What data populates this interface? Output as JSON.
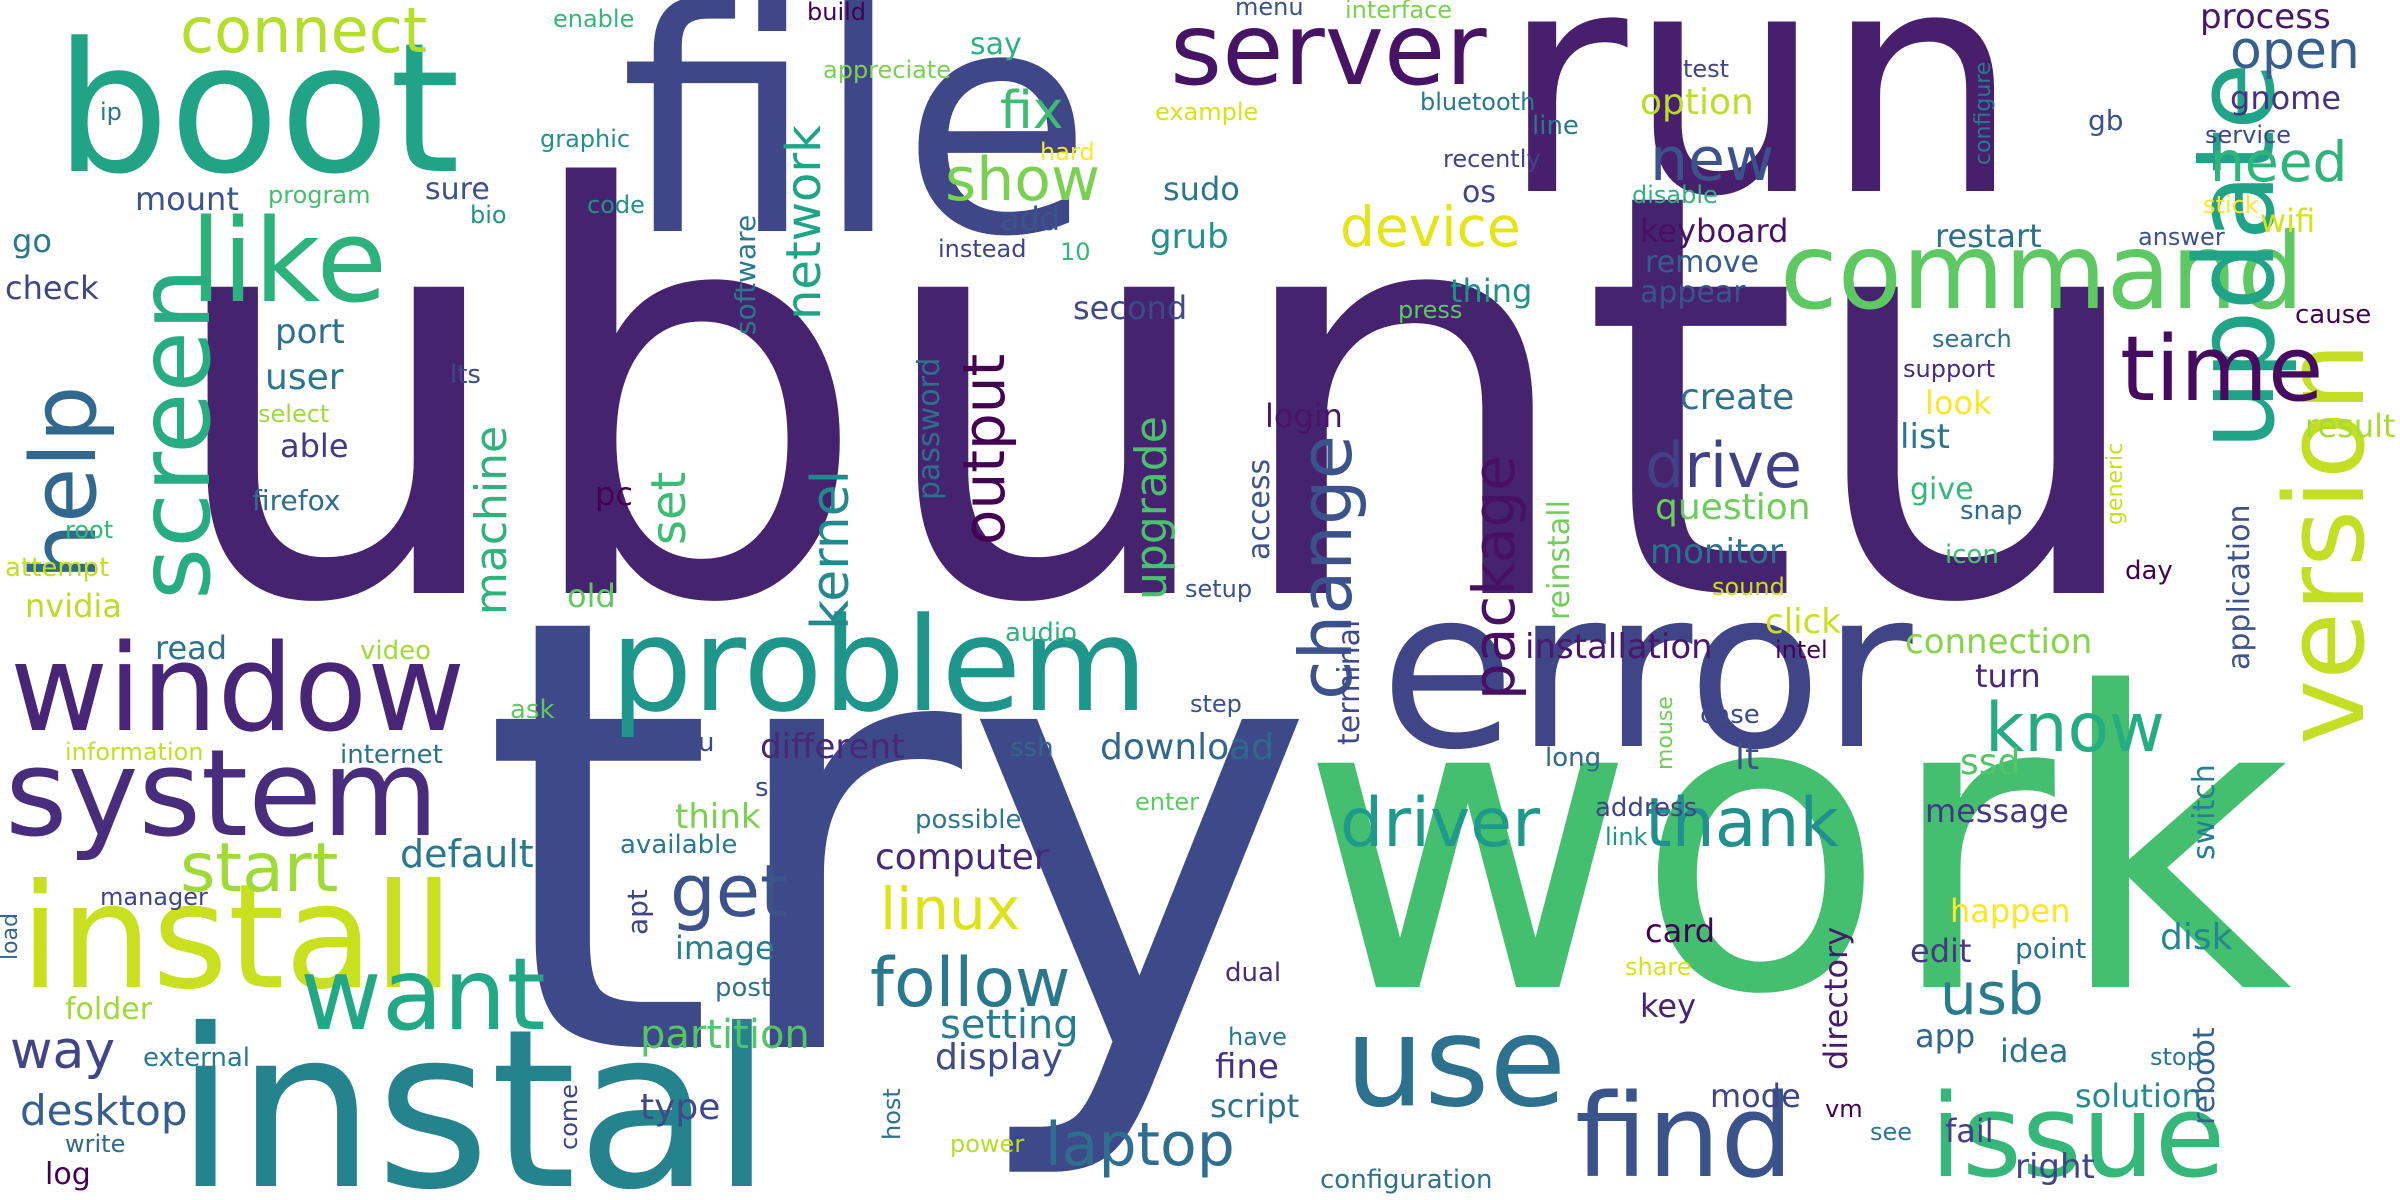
{
  "words": [
    {
      "text": "ubuntu",
      "color": "#46236f"
    },
    {
      "text": "try",
      "color": "#3e4989"
    },
    {
      "text": "work",
      "color": "#44bf70"
    },
    {
      "text": "run",
      "color": "#471f6c"
    },
    {
      "text": "file",
      "color": "#3f4788"
    },
    {
      "text": "instal",
      "color": "#25838e"
    },
    {
      "text": "error",
      "color": "#404588"
    },
    {
      "text": "boot",
      "color": "#21a385"
    },
    {
      "text": "install",
      "color": "#c8e020"
    },
    {
      "text": "problem",
      "color": "#1f968b"
    },
    {
      "text": "window",
      "color": "#482576"
    },
    {
      "text": "system",
      "color": "#472d7b"
    },
    {
      "text": "use",
      "color": "#2c728e"
    },
    {
      "text": "find",
      "color": "#3a538b"
    },
    {
      "text": "issue",
      "color": "#35b779"
    },
    {
      "text": "command",
      "color": "#5ec962"
    },
    {
      "text": "update",
      "color": "#20a386"
    },
    {
      "text": "version",
      "color": "#c2df23"
    },
    {
      "text": "like",
      "color": "#2db27d"
    },
    {
      "text": "server",
      "color": "#471365"
    },
    {
      "text": "screen",
      "color": "#27ad81"
    },
    {
      "text": "want",
      "color": "#22a884"
    },
    {
      "text": "time",
      "color": "#460b5e"
    },
    {
      "text": "help",
      "color": "#31688e"
    },
    {
      "text": "connect",
      "color": "#b5de2b"
    },
    {
      "text": "get",
      "color": "#3b528b"
    },
    {
      "text": "follow",
      "color": "#2a788e"
    },
    {
      "text": "laptop",
      "color": "#2e6e8e"
    },
    {
      "text": "driver",
      "color": "#1f9a8a"
    },
    {
      "text": "thank",
      "color": "#21908d"
    },
    {
      "text": "know",
      "color": "#25ac82"
    },
    {
      "text": "change",
      "color": "#3b528b"
    },
    {
      "text": "start",
      "color": "#a0da39"
    },
    {
      "text": "drive",
      "color": "#424086"
    },
    {
      "text": "package",
      "color": "#471063"
    },
    {
      "text": "show",
      "color": "#7ad151"
    },
    {
      "text": "device",
      "color": "#e5e419"
    },
    {
      "text": "new",
      "color": "#3b528b"
    },
    {
      "text": "need",
      "color": "#2fb47c"
    },
    {
      "text": "open",
      "color": "#355f8d"
    },
    {
      "text": "fix",
      "color": "#3fbc73"
    },
    {
      "text": "output",
      "color": "#440154"
    },
    {
      "text": "network",
      "color": "#20a486"
    },
    {
      "text": "kernel",
      "color": "#23898e"
    },
    {
      "text": "upgrade",
      "color": "#4ac16d"
    },
    {
      "text": "machine",
      "color": "#2eb37c"
    },
    {
      "text": "set",
      "color": "#3dbc74"
    },
    {
      "text": "linux",
      "color": "#dde318"
    },
    {
      "text": "usb",
      "color": "#287c8e"
    },
    {
      "text": "way",
      "color": "#414487"
    },
    {
      "text": "desktop",
      "color": "#355f8d"
    },
    {
      "text": "default",
      "color": "#29798e"
    },
    {
      "text": "partition",
      "color": "#52c569"
    },
    {
      "text": "setting",
      "color": "#287d8e"
    },
    {
      "text": "display",
      "color": "#3e4a89"
    },
    {
      "text": "computer",
      "color": "#482979"
    },
    {
      "text": "download",
      "color": "#31688e"
    },
    {
      "text": "different",
      "color": "#482777"
    },
    {
      "text": "installation",
      "color": "#481769"
    },
    {
      "text": "connection",
      "color": "#86d549"
    },
    {
      "text": "create",
      "color": "#2c718e"
    },
    {
      "text": "list",
      "color": "#2a768e"
    },
    {
      "text": "question",
      "color": "#6ccd5a"
    },
    {
      "text": "monitor",
      "color": "#2c718e"
    },
    {
      "text": "keyboard",
      "color": "#471063"
    },
    {
      "text": "restart",
      "color": "#2d708e"
    },
    {
      "text": "remove",
      "color": "#365d8d"
    },
    {
      "text": "appear",
      "color": "#3a548c"
    },
    {
      "text": "option",
      "color": "#b8de29"
    },
    {
      "text": "process",
      "color": "#481769"
    },
    {
      "text": "gnome",
      "color": "#46337f"
    },
    {
      "text": "wifi",
      "color": "#d8e219"
    },
    {
      "text": "message",
      "color": "#453882"
    },
    {
      "text": "ssd",
      "color": "#52c569"
    },
    {
      "text": "lt",
      "color": "#3b528b"
    },
    {
      "text": "turn",
      "color": "#472a7a"
    },
    {
      "text": "solution",
      "color": "#238a8d"
    },
    {
      "text": "disk",
      "color": "#24868e"
    },
    {
      "text": "happen",
      "color": "#fde725"
    },
    {
      "text": "edit",
      "color": "#453781"
    },
    {
      "text": "point",
      "color": "#2c728e"
    },
    {
      "text": "app",
      "color": "#31678e"
    },
    {
      "text": "idea",
      "color": "#2b748e"
    },
    {
      "text": "card",
      "color": "#440154"
    },
    {
      "text": "key",
      "color": "#482173"
    },
    {
      "text": "mode",
      "color": "#404588"
    },
    {
      "text": "fail",
      "color": "#433e85"
    },
    {
      "text": "right",
      "color": "#404588"
    },
    {
      "text": "reboot",
      "color": "#33628d"
    },
    {
      "text": "switch",
      "color": "#277f8e"
    },
    {
      "text": "application",
      "color": "#3b528b"
    },
    {
      "text": "result",
      "color": "#a8db34"
    },
    {
      "text": "cause",
      "color": "#440154"
    },
    {
      "text": "day",
      "color": "#440154"
    },
    {
      "text": "directory",
      "color": "#481a6c"
    },
    {
      "text": "reinstall",
      "color": "#6ece58"
    },
    {
      "text": "terminal",
      "color": "#3e4989"
    },
    {
      "text": "access",
      "color": "#3a548c"
    },
    {
      "text": "login",
      "color": "#481467"
    },
    {
      "text": "password",
      "color": "#2d708e"
    },
    {
      "text": "user",
      "color": "#2a768e"
    },
    {
      "text": "port",
      "color": "#2e6f8e"
    },
    {
      "text": "able",
      "color": "#443983"
    },
    {
      "text": "firefox",
      "color": "#2e6d8e"
    },
    {
      "text": "mount",
      "color": "#3b528b"
    },
    {
      "text": "sure",
      "color": "#3b528b"
    },
    {
      "text": "check",
      "color": "#414487"
    },
    {
      "text": "go",
      "color": "#2a788e"
    },
    {
      "text": "read",
      "color": "#2d718e"
    },
    {
      "text": "nvidia",
      "color": "#bade28"
    },
    {
      "text": "root",
      "color": "#35b779"
    },
    {
      "text": "attempt",
      "color": "#c0df25"
    },
    {
      "text": "select",
      "color": "#a0da39"
    },
    {
      "text": "lts",
      "color": "#3e4989"
    },
    {
      "text": "pc",
      "color": "#440154"
    },
    {
      "text": "old",
      "color": "#60ca60"
    },
    {
      "text": "video",
      "color": "#a0da39"
    },
    {
      "text": "ask",
      "color": "#5ec962"
    },
    {
      "text": "internet",
      "color": "#2c728e"
    },
    {
      "text": "information",
      "color": "#c2df23"
    },
    {
      "text": "gpu",
      "color": "#3e4989"
    },
    {
      "text": "think",
      "color": "#7ad151"
    },
    {
      "text": "image",
      "color": "#277f8e"
    },
    {
      "text": "available",
      "color": "#2a788e"
    },
    {
      "text": "apt",
      "color": "#414487"
    },
    {
      "text": "post",
      "color": "#2c728e"
    },
    {
      "text": "solve",
      "color": "#3e4989"
    },
    {
      "text": "ssh",
      "color": "#31688e"
    },
    {
      "text": "possible",
      "color": "#2a788e"
    },
    {
      "text": "enter",
      "color": "#5ec962"
    },
    {
      "text": "step",
      "color": "#3b528b"
    },
    {
      "text": "setup",
      "color": "#3b528b"
    },
    {
      "text": "audio",
      "color": "#2db27d"
    },
    {
      "text": "dual",
      "color": "#472d7b"
    },
    {
      "text": "have",
      "color": "#2a788e"
    },
    {
      "text": "script",
      "color": "#2c728e"
    },
    {
      "text": "fine",
      "color": "#46337f"
    },
    {
      "text": "type",
      "color": "#3e4989"
    },
    {
      "text": "come",
      "color": "#414487"
    },
    {
      "text": "host",
      "color": "#2c728e"
    },
    {
      "text": "power",
      "color": "#b5de2b"
    },
    {
      "text": "configuration",
      "color": "#2c728e"
    },
    {
      "text": "see",
      "color": "#2a788e"
    },
    {
      "text": "stop",
      "color": "#2a788e"
    },
    {
      "text": "vm",
      "color": "#440154"
    },
    {
      "text": "share",
      "color": "#d8e219"
    },
    {
      "text": "link",
      "color": "#21918c"
    },
    {
      "text": "address",
      "color": "#414487"
    },
    {
      "text": "mouse",
      "color": "#6ece58"
    },
    {
      "text": "case",
      "color": "#3e4989"
    },
    {
      "text": "long",
      "color": "#31688e"
    },
    {
      "text": "intel",
      "color": "#440154"
    },
    {
      "text": "click",
      "color": "#c8e020"
    },
    {
      "text": "sound",
      "color": "#c8e020"
    },
    {
      "text": "icon",
      "color": "#44bf70"
    },
    {
      "text": "snap",
      "color": "#31688e"
    },
    {
      "text": "give",
      "color": "#35b779"
    },
    {
      "text": "look",
      "color": "#fde725"
    },
    {
      "text": "support",
      "color": "#472d7b"
    },
    {
      "text": "search",
      "color": "#2c728e"
    },
    {
      "text": "generic",
      "color": "#c8e020"
    },
    {
      "text": "answer",
      "color": "#3b528b"
    },
    {
      "text": "stick",
      "color": "#fde725"
    },
    {
      "text": "service",
      "color": "#3e4989"
    },
    {
      "text": "gb",
      "color": "#3b528b"
    },
    {
      "text": "configure",
      "color": "#2a788e"
    },
    {
      "text": "test",
      "color": "#414487"
    },
    {
      "text": "disable",
      "color": "#2db27d"
    },
    {
      "text": "recently",
      "color": "#414487"
    },
    {
      "text": "os",
      "color": "#414487"
    },
    {
      "text": "bluetooth",
      "color": "#2a788e"
    },
    {
      "text": "line",
      "color": "#2a788e"
    },
    {
      "text": "press",
      "color": "#5ec962"
    },
    {
      "text": "thing",
      "color": "#21918c"
    },
    {
      "text": "second",
      "color": "#3e4989"
    },
    {
      "text": "grub",
      "color": "#21918c"
    },
    {
      "text": "sudo",
      "color": "#2a788e"
    },
    {
      "text": "10",
      "color": "#35b779"
    },
    {
      "text": "instead",
      "color": "#414487"
    },
    {
      "text": "add",
      "color": "#3b528b"
    },
    {
      "text": "hard",
      "color": "#fde725"
    },
    {
      "text": "example",
      "color": "#d8e219"
    },
    {
      "text": "menu",
      "color": "#3b528b"
    },
    {
      "text": "interface",
      "color": "#7ad151"
    },
    {
      "text": "appreciate",
      "color": "#7ad151"
    },
    {
      "text": "build",
      "color": "#440154"
    },
    {
      "text": "say",
      "color": "#2db27d"
    },
    {
      "text": "enable",
      "color": "#35b779"
    },
    {
      "text": "ip",
      "color": "#2a788e"
    },
    {
      "text": "graphic",
      "color": "#21918c"
    },
    {
      "text": "program",
      "color": "#44bf70"
    },
    {
      "text": "bio",
      "color": "#21918c"
    },
    {
      "text": "code",
      "color": "#21918c"
    },
    {
      "text": "software",
      "color": "#2a788e"
    },
    {
      "text": "folder",
      "color": "#a0da39"
    },
    {
      "text": "manager",
      "color": "#414487"
    },
    {
      "text": "external",
      "color": "#2a788e"
    },
    {
      "text": "load",
      "color": "#31688e"
    },
    {
      "text": "write",
      "color": "#31688e"
    },
    {
      "text": "log",
      "color": "#440154"
    }
  ]
}
